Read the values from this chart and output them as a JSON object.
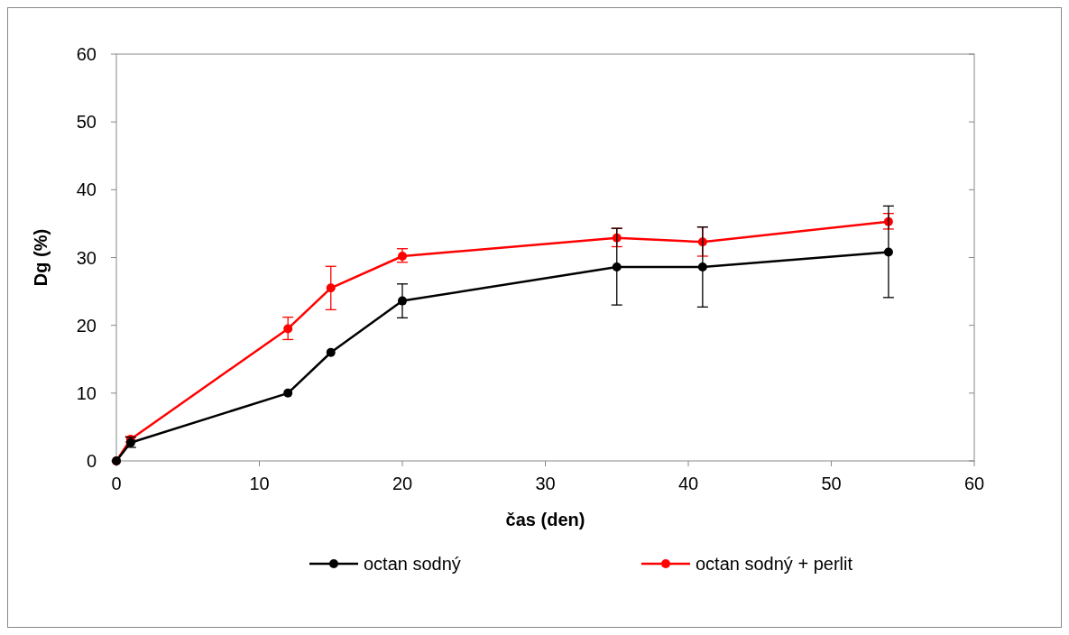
{
  "chart_data": {
    "type": "line",
    "xlabel": "čas (den)",
    "ylabel": "Dg (%)",
    "x": [
      0,
      1,
      12,
      15,
      20,
      35,
      41,
      54
    ],
    "series": [
      {
        "name": "octan sodný",
        "color": "#000000",
        "values": [
          0,
          2.7,
          10,
          16,
          23.6,
          28.6,
          28.6,
          30.8
        ],
        "errors": [
          null,
          [
            2.0,
            3.5
          ],
          null,
          null,
          [
            21.1,
            26.1
          ],
          [
            23.0,
            34.3
          ],
          [
            22.7,
            34.5
          ],
          [
            24.1,
            37.6
          ]
        ]
      },
      {
        "name": "octan sodný + perlit",
        "color": "#ff0000",
        "values": [
          0,
          3.2,
          19.5,
          25.5,
          30.2,
          32.9,
          32.3,
          35.3
        ],
        "errors": [
          null,
          [
            2.8,
            3.6
          ],
          [
            17.9,
            21.2
          ],
          [
            22.3,
            28.7
          ],
          [
            29.3,
            31.3
          ],
          [
            31.6,
            34.3
          ],
          [
            30.2,
            34.5
          ],
          [
            34.2,
            36.5
          ]
        ]
      }
    ],
    "xlim": [
      0,
      60
    ],
    "xticks": [
      0,
      10,
      20,
      30,
      40,
      50,
      60
    ],
    "ylim": [
      0,
      60
    ],
    "yticks": [
      0,
      10,
      20,
      30,
      40,
      50,
      60
    ],
    "grid": false,
    "legend": "bottom",
    "marker": "circle",
    "line_style": "solid"
  }
}
